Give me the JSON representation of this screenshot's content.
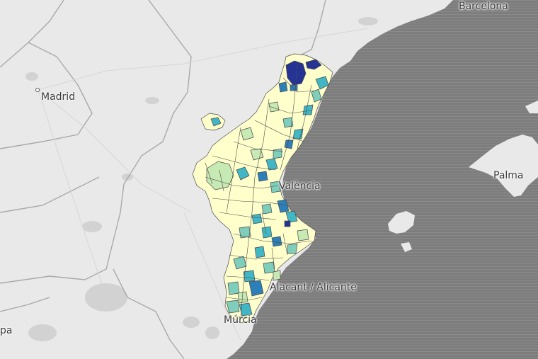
{
  "map": {
    "colors": {
      "sea": "#7d7d7d",
      "land": "#e9e9e9",
      "urban": "#cfcfcf",
      "border": "#a9a9a9",
      "municipality_outline": "#4a4a4a",
      "scale": [
        "#ffffcc",
        "#c7e9b4",
        "#7fcdbb",
        "#41b6c4",
        "#2c7fb8",
        "#253494"
      ]
    },
    "labels": {
      "barcelona": "Barcelona",
      "madrid": "Madrid",
      "palma": "Palma",
      "valencia": "València",
      "alicante": "Alacant / Alicante",
      "murcia": "Múrcia",
      "granada_partial": "pa"
    },
    "icons": {
      "city_marker": "dot-icon"
    }
  }
}
